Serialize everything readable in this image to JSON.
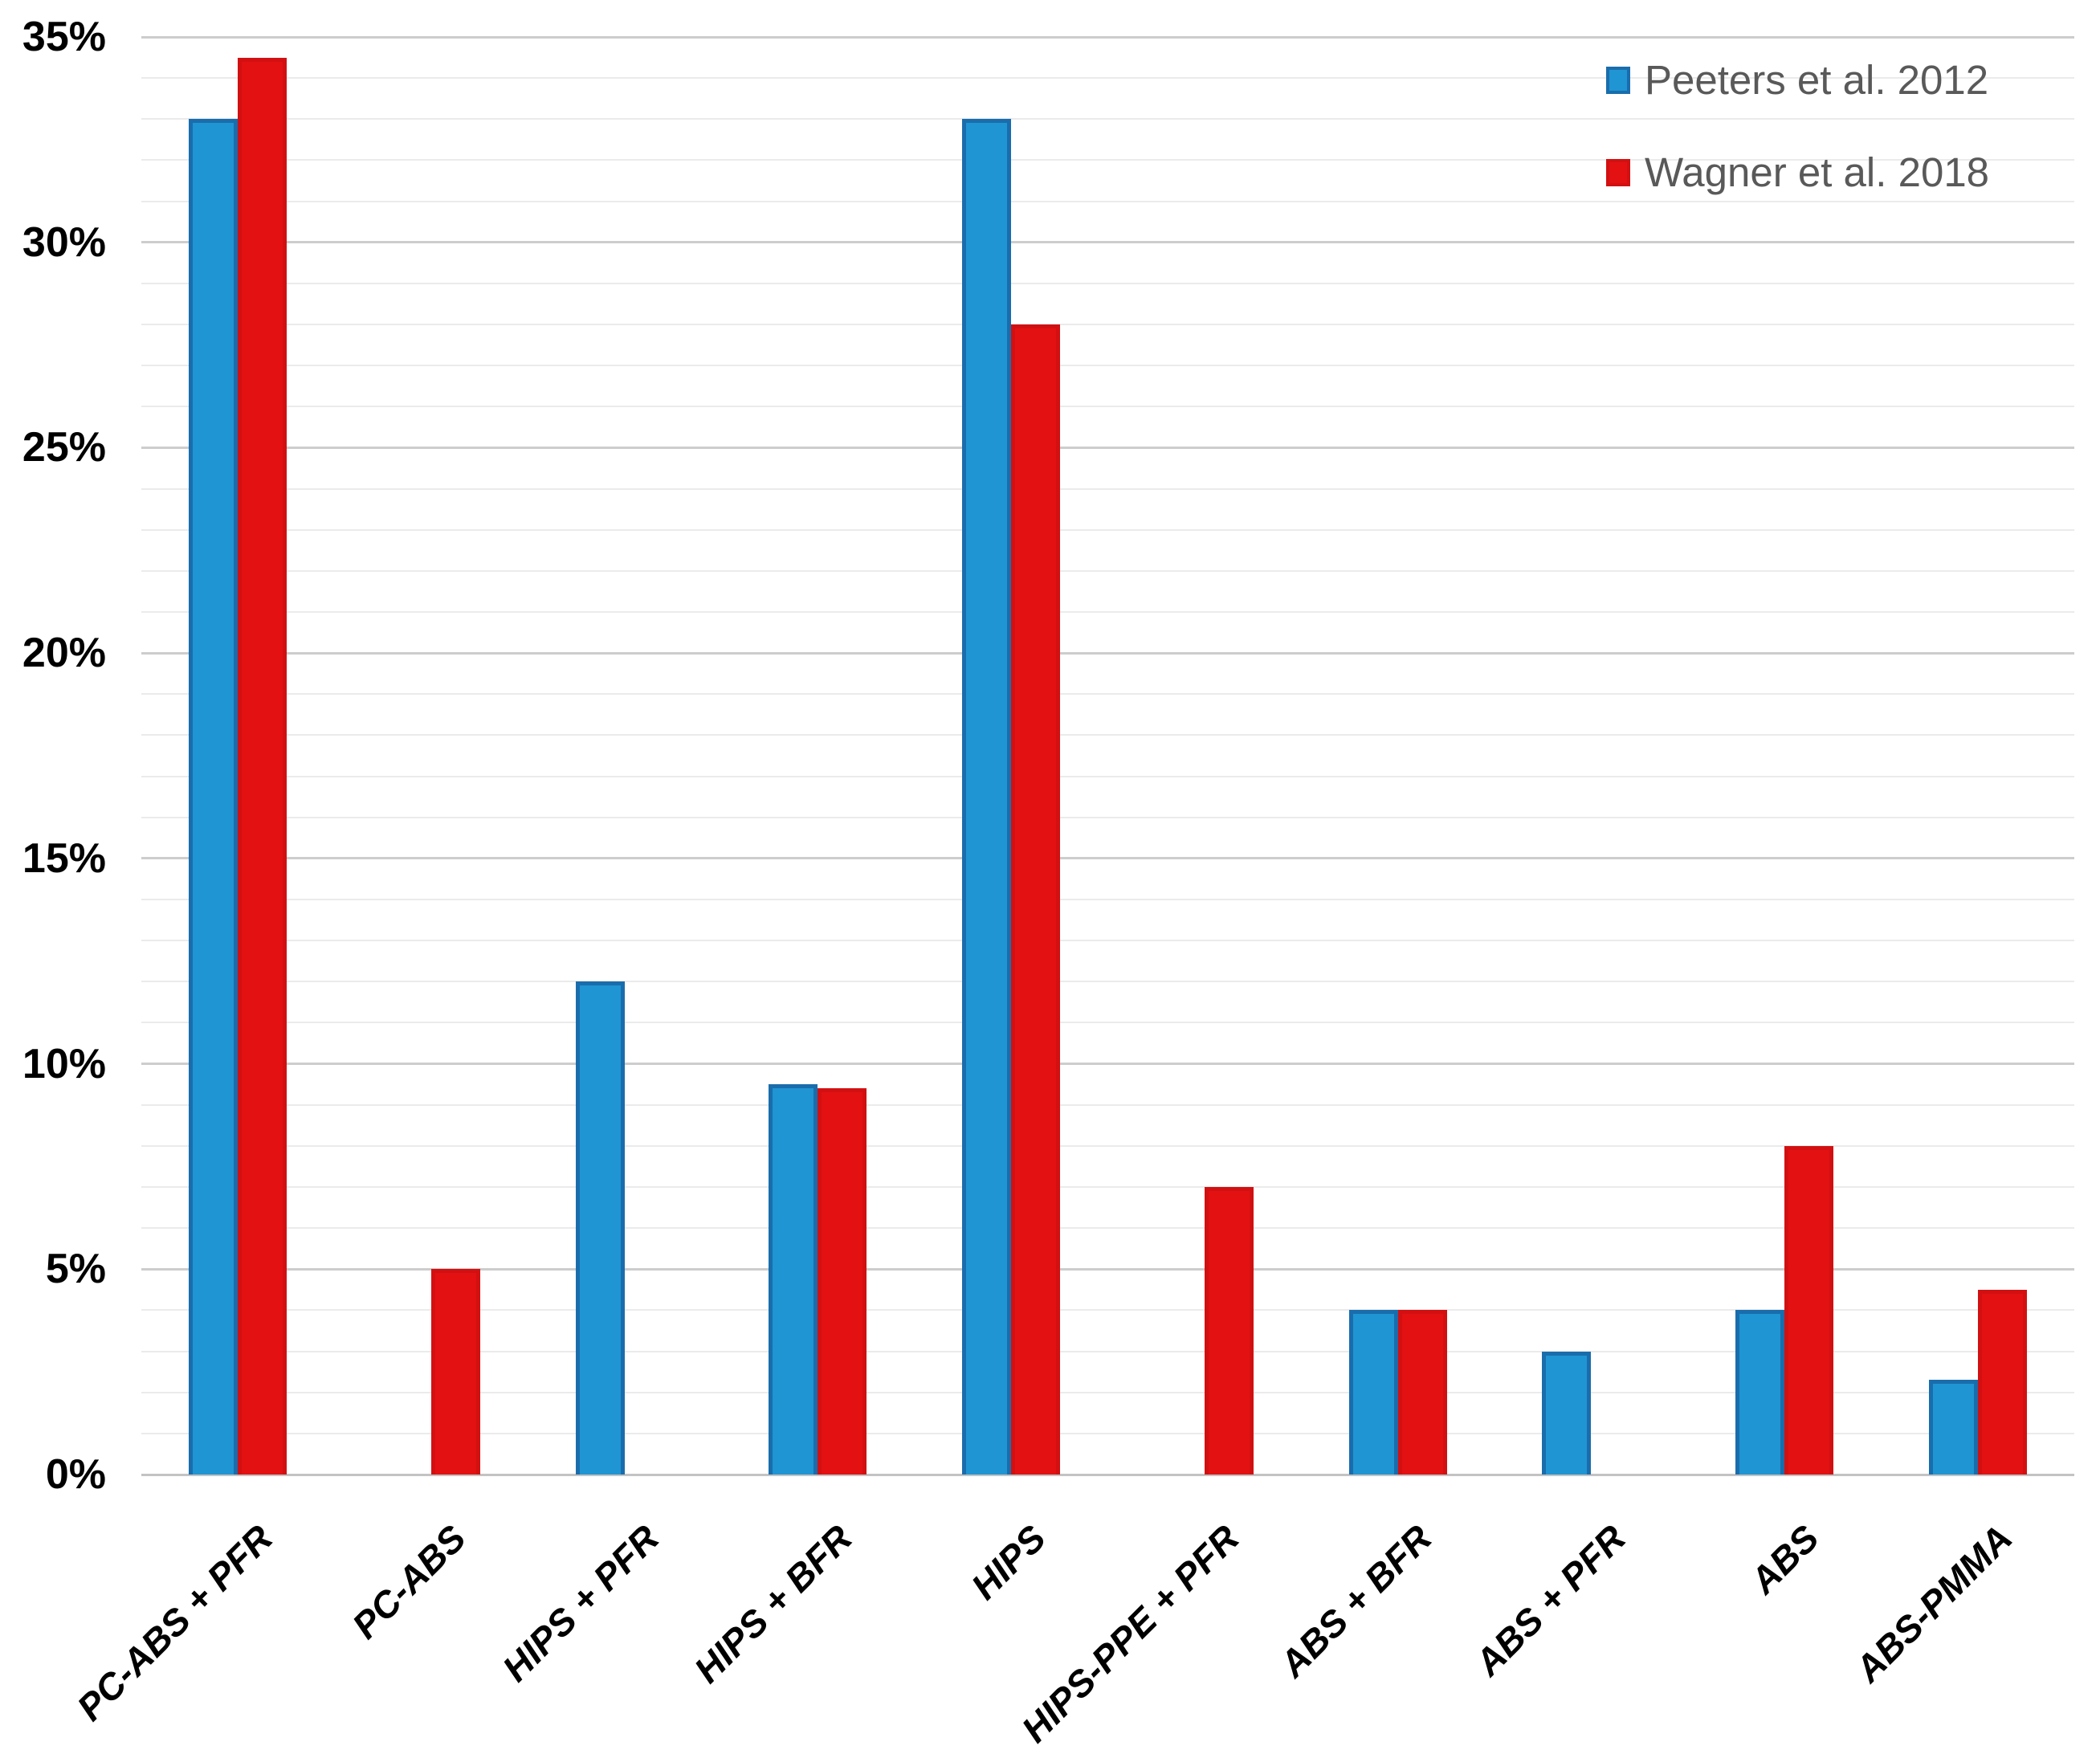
{
  "chart_data": {
    "type": "bar",
    "title": "",
    "xlabel": "",
    "ylabel": "",
    "categories": [
      "PC-ABS + PFR",
      "PC-ABS",
      "HIPS + PFR",
      "HIPS + BFR",
      "HIPS",
      "HIPS-PPE + PFR",
      "ABS + BFR",
      "ABS + PFR",
      "ABS",
      "ABS-PMMA"
    ],
    "series": [
      {
        "name": "Peeters et al. 2012",
        "color": "#2095D3",
        "border_color": "#1A6DAC",
        "values": [
          33,
          0,
          12,
          9.5,
          33,
          0,
          4,
          3,
          4,
          2.3
        ]
      },
      {
        "name": "Wagner et al. 2018",
        "color": "#E31112",
        "border_color": "#D21011",
        "values": [
          34.5,
          5,
          0,
          9.4,
          28,
          7,
          4,
          0,
          8,
          4.5
        ]
      }
    ],
    "ylim": [
      0,
      35
    ],
    "y_major_step": 5,
    "y_minor_step": 1,
    "y_tick_labels": [
      "0%",
      "5%",
      "10%",
      "15%",
      "20%",
      "25%",
      "30%",
      "35%"
    ],
    "unit": "%",
    "grid": true,
    "legend_position": "top-right"
  },
  "colors": {
    "background": "#FFFFFF",
    "minor_gridline": "#EBEBEB",
    "major_gridline": "#CDCDCD",
    "axis_line": "#C3C3C3",
    "axis_text": "#000000",
    "legend_text": "#595959"
  }
}
